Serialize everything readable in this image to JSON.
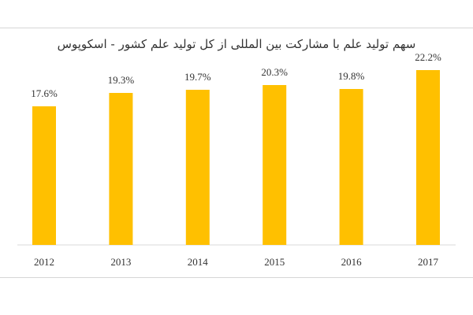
{
  "chart_data": {
    "type": "bar",
    "title": "سهم تولید علم با مشارکت بین المللی از کل تولید علم کشور - اسکوپوس",
    "categories": [
      "2012",
      "2013",
      "2014",
      "2015",
      "2016",
      "2017"
    ],
    "values": [
      17.6,
      19.3,
      19.7,
      20.3,
      19.8,
      22.2
    ],
    "data_labels": [
      "17.6%",
      "19.3%",
      "19.7%",
      "20.3%",
      "19.8%",
      "22.2%"
    ],
    "xlabel": "",
    "ylabel": "",
    "ylim": [
      0,
      25
    ],
    "grid": false,
    "legend": "none",
    "bar_color": "#FFC000"
  }
}
